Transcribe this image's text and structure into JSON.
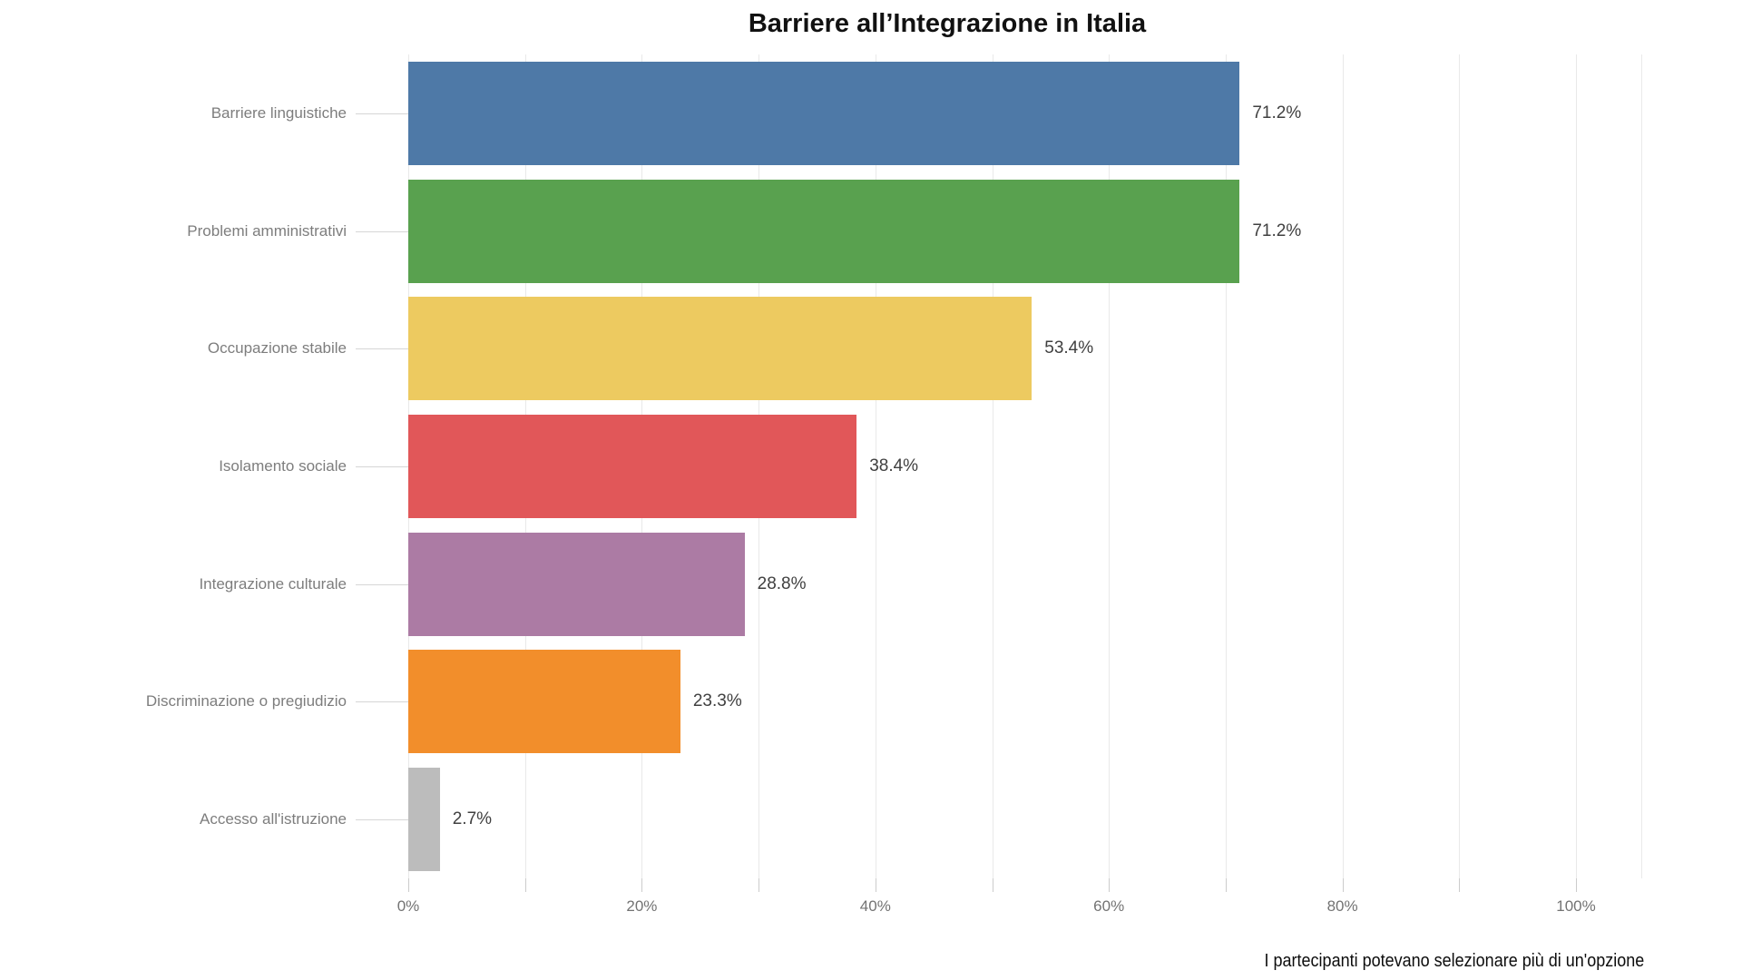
{
  "title": "Barriere all’Integrazione in Italia",
  "footnote": "I partecipanti potevano selezionare più di un'opzione",
  "chart_data": {
    "type": "bar",
    "orientation": "horizontal",
    "title": "Barriere all’Integrazione in Italia",
    "categories": [
      "Barriere linguistiche",
      "Problemi amministrativi",
      "Occupazione stabile",
      "Isolamento sociale",
      "Integrazione culturale",
      "Discriminazione o pregiudizio",
      "Accesso all'istruzione"
    ],
    "values": [
      71.2,
      71.2,
      53.4,
      38.4,
      28.8,
      23.3,
      2.7
    ],
    "value_labels": [
      "71.2%",
      "71.2%",
      "53.4%",
      "38.4%",
      "28.8%",
      "23.3%",
      "2.7%"
    ],
    "bar_colors": [
      "#4E79A7",
      "#59A14F",
      "#EDCA60",
      "#E15759",
      "#AC7BA4",
      "#F28E2B",
      "#BCBCBC"
    ],
    "x_tick_labels": [
      "0%",
      "20%",
      "40%",
      "60%",
      "80%",
      "100%"
    ],
    "x_tick_values": [
      0,
      20,
      40,
      60,
      80,
      100
    ],
    "xlim": [
      0,
      105.7
    ],
    "grid_step": 10,
    "grid": true,
    "legend": false,
    "annotation": "I partecipanti potevano selezionare più di un'opzione"
  }
}
